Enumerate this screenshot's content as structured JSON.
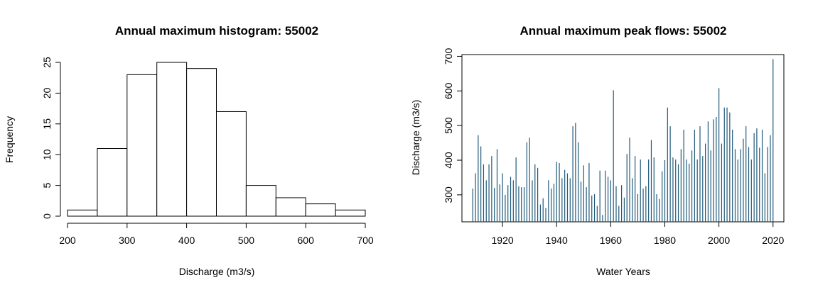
{
  "chart_data": [
    {
      "type": "bar",
      "title": "Annual maximum histogram: 55002",
      "xlabel": "Discharge (m3/s)",
      "ylabel": "Frequency",
      "bins": [
        [
          200,
          250
        ],
        [
          250,
          300
        ],
        [
          300,
          350
        ],
        [
          350,
          400
        ],
        [
          400,
          450
        ],
        [
          450,
          500
        ],
        [
          500,
          550
        ],
        [
          550,
          600
        ],
        [
          600,
          650
        ],
        [
          650,
          700
        ]
      ],
      "values": [
        1,
        11,
        23,
        25,
        24,
        17,
        5,
        3,
        2,
        1
      ],
      "xlim": [
        200,
        700
      ],
      "ylim": [
        0,
        25
      ],
      "xticks": [
        "200",
        "300",
        "400",
        "500",
        "600",
        "700"
      ],
      "yticks": [
        "0",
        "5",
        "10",
        "15",
        "20",
        "25"
      ],
      "grid": false,
      "bar_fill": "#ffffff",
      "bar_stroke": "#000000"
    },
    {
      "type": "bar",
      "title": "Annual maximum peak flows: 55002",
      "xlabel": "Water Years",
      "ylabel": "Discharge (m3/s)",
      "xlim": [
        1905,
        2024
      ],
      "ylim": [
        222,
        705
      ],
      "xticks": [
        "1920",
        "1940",
        "1960",
        "1980",
        "2000",
        "2020"
      ],
      "yticks": [
        "300",
        "400",
        "500",
        "600",
        "700"
      ],
      "grid": false,
      "series_color": "#1f5a7a",
      "x": [
        1909,
        1910,
        1911,
        1912,
        1913,
        1914,
        1915,
        1916,
        1917,
        1918,
        1919,
        1920,
        1921,
        1922,
        1923,
        1924,
        1925,
        1926,
        1927,
        1928,
        1929,
        1930,
        1931,
        1932,
        1933,
        1934,
        1935,
        1936,
        1937,
        1938,
        1939,
        1940,
        1941,
        1942,
        1943,
        1944,
        1945,
        1946,
        1947,
        1948,
        1949,
        1950,
        1951,
        1952,
        1953,
        1954,
        1955,
        1956,
        1957,
        1958,
        1959,
        1960,
        1961,
        1962,
        1963,
        1964,
        1965,
        1966,
        1967,
        1968,
        1969,
        1970,
        1971,
        1972,
        1973,
        1974,
        1975,
        1976,
        1977,
        1978,
        1979,
        1980,
        1981,
        1982,
        1983,
        1984,
        1985,
        1986,
        1987,
        1988,
        1989,
        1990,
        1991,
        1992,
        1993,
        1994,
        1995,
        1996,
        1997,
        1998,
        1999,
        2000,
        2001,
        2002,
        2003,
        2004,
        2005,
        2006,
        2007,
        2008,
        2009,
        2010,
        2011,
        2012,
        2013,
        2014,
        2015,
        2016,
        2017,
        2018,
        2019,
        2020
      ],
      "values": [
        318,
        362,
        472,
        440,
        388,
        342,
        388,
        412,
        320,
        432,
        330,
        362,
        300,
        328,
        352,
        342,
        408,
        325,
        322,
        322,
        452,
        465,
        342,
        388,
        378,
        272,
        290,
        262,
        342,
        318,
        332,
        395,
        392,
        348,
        372,
        362,
        348,
        498,
        508,
        452,
        338,
        385,
        322,
        392,
        298,
        302,
        268,
        370,
        242,
        370,
        352,
        342,
        602,
        325,
        268,
        328,
        292,
        418,
        465,
        348,
        412,
        302,
        402,
        318,
        325,
        402,
        458,
        408,
        302,
        288,
        368,
        400,
        552,
        498,
        408,
        402,
        388,
        432,
        488,
        402,
        390,
        428,
        488,
        402,
        498,
        412,
        448,
        512,
        428,
        518,
        525,
        608,
        448,
        552,
        552,
        538,
        488,
        432,
        402,
        432,
        462,
        498,
        438,
        402,
        478,
        492,
        436,
        488,
        362,
        438,
        472,
        692
      ]
    }
  ]
}
